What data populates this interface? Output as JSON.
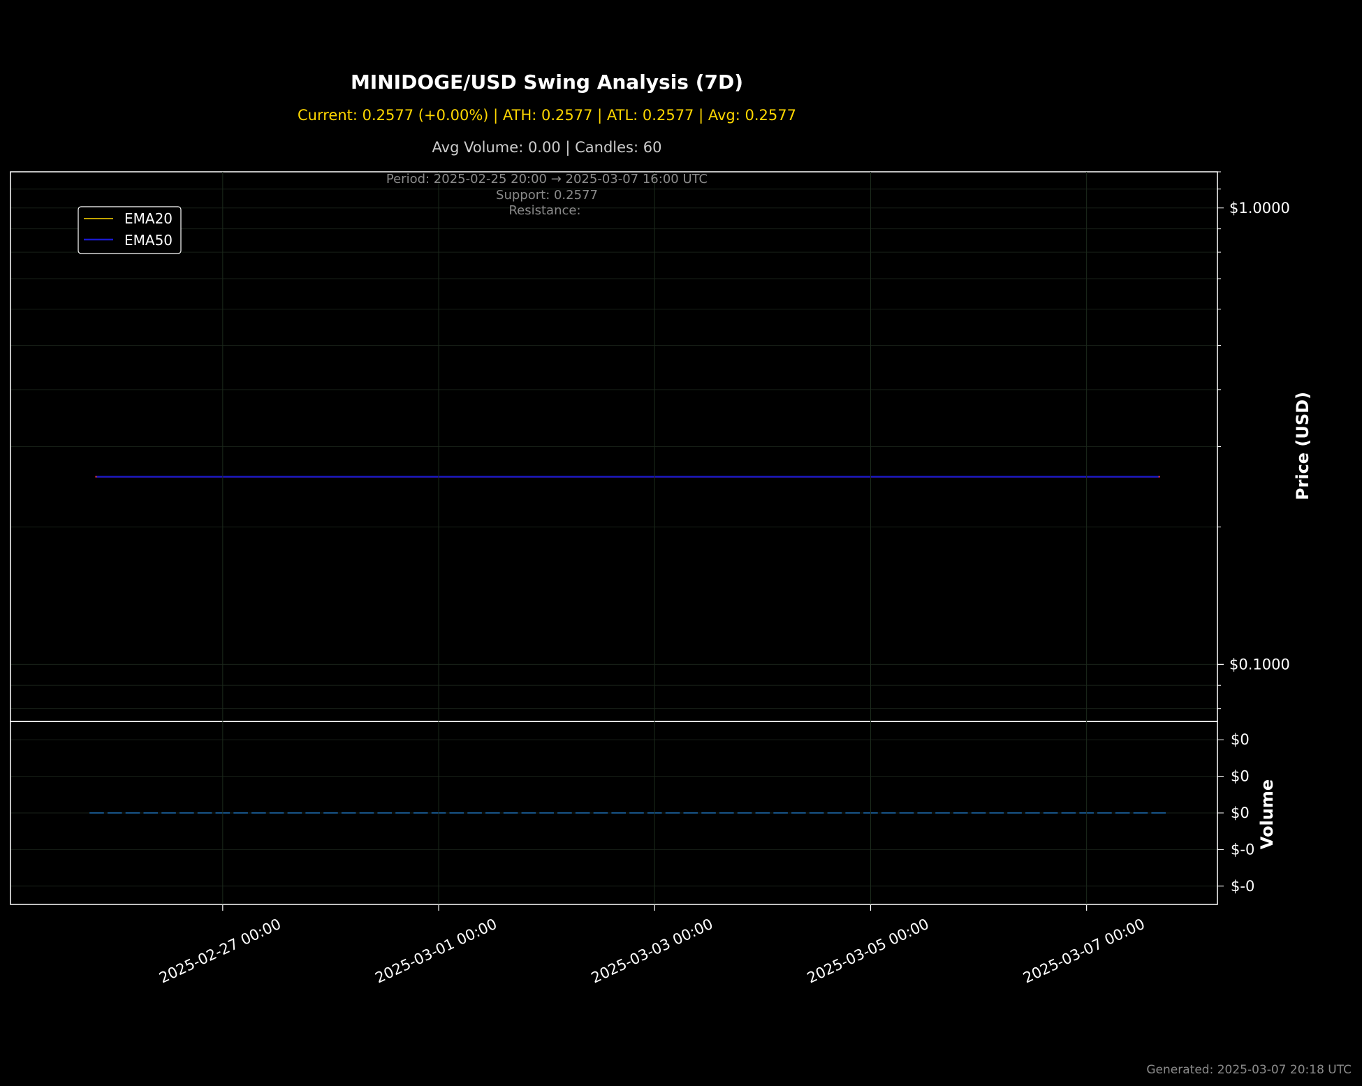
{
  "chart_data": [
    {
      "type": "line",
      "title": "MINIDOGE/USD Swing Analysis (7D)",
      "subtitle": "Current: 0.2577 (+0.00%) | ATH: 0.2577 | ATL: 0.2577 | Avg: 0.2577",
      "subtitle2": "Avg Volume: 0.00 | Candles: 60",
      "info_lines": [
        "Period: 2025-02-25 20:00 → 2025-03-07 16:00 UTC",
        "Support: 0.2577",
        "Resistance:"
      ],
      "ylabel": "Price (USD)",
      "yscale": "log",
      "ylim": [
        0.075,
        1.2
      ],
      "y_ticks": [
        1.0,
        0.1
      ],
      "y_tick_labels": [
        "$1.0000",
        "$0.1000"
      ],
      "xlim": [
        "2025-02-25 00:50",
        "2025-03-08 05:05"
      ],
      "x_ticks": [
        "2025-02-27 00:00",
        "2025-03-01 00:00",
        "2025-03-03 00:00",
        "2025-03-05 00:00",
        "2025-03-07 00:00"
      ],
      "x_tick_labels": [
        "2025-02-27 00:00",
        "2025-03-01 00:00",
        "2025-03-03 00:00",
        "2025-03-05 00:00",
        "2025-03-07 00:00"
      ],
      "grid": true,
      "legend_position": "top-left",
      "series": [
        {
          "name": "EMA20",
          "color": "#ffd700",
          "x": [
            "2025-02-25 20:00",
            "2025-03-07 16:00"
          ],
          "values": [
            0.2577,
            0.2577
          ]
        },
        {
          "name": "EMA50",
          "color": "#1a1acc",
          "x": [
            "2025-02-25 20:00",
            "2025-03-07 16:00"
          ],
          "values": [
            0.2577,
            0.2577
          ]
        }
      ],
      "price_line": {
        "color": "#ff3344",
        "x": [
          "2025-02-25 20:00",
          "2025-03-07 16:00"
        ],
        "value": 0.2577
      }
    },
    {
      "type": "bar",
      "ylabel": "Volume",
      "ylim": [
        -1.0,
        1.0
      ],
      "y_ticks": [
        0.8,
        0.4,
        0.0,
        -0.4,
        -0.8
      ],
      "y_tick_labels": [
        "$0",
        "$0",
        "$0",
        "$-0",
        "$-0"
      ],
      "bar_color": "#1f6fb4",
      "candles": 60,
      "start": "2025-02-25 20:00",
      "end": "2025-03-07 16:00",
      "values_all": 0
    }
  ],
  "footer": "Generated: 2025-03-07 20:18 UTC"
}
